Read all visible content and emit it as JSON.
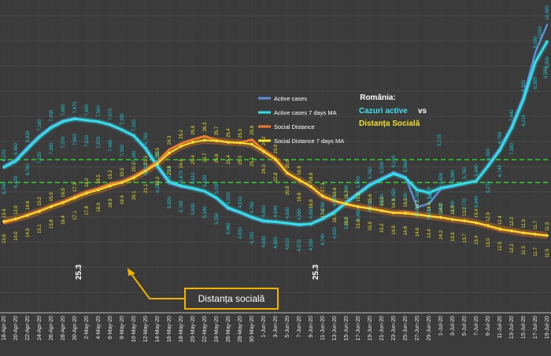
{
  "chart_data": {
    "type": "line",
    "title": "România:",
    "title_part_a": "Cazuri active",
    "title_vs": "vs",
    "title_part_b": "Distanța Socială",
    "legend_position": "top-center",
    "grid": true,
    "callout_label": "Distanța socială",
    "annotations": [
      "25.3",
      "25.3",
      "5,178",
      "5,080",
      "9,580",
      "10390"
    ],
    "x": [
      "18-Apr-20",
      "20-Apr-20",
      "22-Apr-20",
      "24-Apr-20",
      "26-Apr-20",
      "28-Apr-20",
      "30-Apr-20",
      "2-May-20",
      "4-May-20",
      "6-May-20",
      "8-May-20",
      "10-May-20",
      "12-May-20",
      "14-May-20",
      "16-May-20",
      "18-May-20",
      "20-May-20",
      "22-May-20",
      "24-May-20",
      "26-May-20",
      "28-May-20",
      "30-May-20",
      "1-Jun-20",
      "3-Jun-20",
      "5-Jun-20",
      "7-Jun-20",
      "9-Jun-20",
      "11-Jun-20",
      "13-Jun-20",
      "15-Jun-20",
      "17-Jun-20",
      "19-Jun-20",
      "21-Jun-20",
      "23-Jun-20",
      "25-Jun-20",
      "27-Jun-20",
      "29-Jun-20",
      "1-Jul-20",
      "3-Jul-20",
      "5-Jul-20",
      "7-Jul-20",
      "9-Jul-20",
      "11-Jul-20",
      "13-Jul-20",
      "15-Jul-20",
      "17-Jul-20",
      "19-Jul-20"
    ],
    "series": [
      {
        "name": "Active cases",
        "axis": "left",
        "color": "#5b8fd9",
        "values": [
          6270,
          6460,
          6830,
          7160,
          7430,
          7600,
          7670,
          7600,
          7560,
          7470,
          7330,
          7150,
          6760,
          6230,
          5770,
          5670,
          5610,
          5530,
          5330,
          5020,
          4910,
          4760,
          4650,
          4640,
          4600,
          4550,
          4600,
          4760,
          4960,
          5240,
          5500,
          5760,
          5920,
          6100,
          5960,
          5080,
          5178,
          5600,
          5680,
          5760,
          5840,
          6300,
          6790,
          7440,
          8300,
          9580,
          10390
        ]
      },
      {
        "name": "Active cases 7 days MA",
        "axis": "left",
        "color": "#33dde9",
        "values": [
          6240,
          6420,
          6780,
          7120,
          7390,
          7570,
          7650,
          7610,
          7570,
          7480,
          7330,
          7160,
          6790,
          6280,
          5820,
          5700,
          5630,
          5540,
          5350,
          5060,
          4930,
          4790,
          4680,
          4650,
          4610,
          4570,
          4590,
          4740,
          4930,
          5210,
          5460,
          5720,
          5890,
          6050,
          5930,
          5580,
          5500,
          5640,
          5700,
          5770,
          5840,
          6270,
          6740,
          7380,
          8210,
          9300,
          9900
        ]
      },
      {
        "name": "Social Distance",
        "axis": "right",
        "color": "#ee7b2c",
        "values": [
          13.4,
          13.9,
          14.6,
          15.2,
          15.9,
          16.5,
          17.3,
          18.0,
          18.5,
          19.2,
          19.5,
          20.3,
          21.3,
          22.5,
          24.3,
          25.2,
          25.8,
          26.3,
          25.7,
          25.4,
          25.3,
          25.8,
          24.2,
          23.0,
          20.8,
          19.8,
          18.8,
          17.3,
          16.6,
          16.2,
          15.8,
          15.6,
          15.2,
          14.9,
          15.0,
          14.7,
          14.4,
          14.2,
          13.9,
          13.7,
          13.4,
          12.9,
          12.4,
          12.2,
          11.9,
          11.7,
          11.5
        ]
      },
      {
        "name": "Social Distance 7 days MA",
        "axis": "right",
        "color": "#f1e62c",
        "values": [
          13.6,
          14.0,
          14.5,
          15.1,
          15.8,
          16.4,
          17.1,
          17.8,
          18.3,
          18.9,
          19.4,
          20.1,
          21.1,
          22.2,
          23.8,
          24.8,
          25.4,
          25.7,
          25.6,
          25.4,
          25.3,
          25.1,
          24.0,
          22.8,
          20.8,
          19.8,
          18.8,
          17.4,
          16.7,
          16.2,
          15.8,
          15.5,
          15.2,
          14.9,
          14.8,
          14.6,
          14.4,
          14.2,
          13.9,
          13.7,
          13.4,
          13.0,
          12.5,
          12.2,
          11.9,
          11.7,
          11.5
        ]
      }
    ],
    "green_band": {
      "lower": 19.4,
      "upper": 22.8
    },
    "left_axis_range": [
      2000,
      11000
    ],
    "right_axis_range": [
      0,
      46
    ]
  }
}
